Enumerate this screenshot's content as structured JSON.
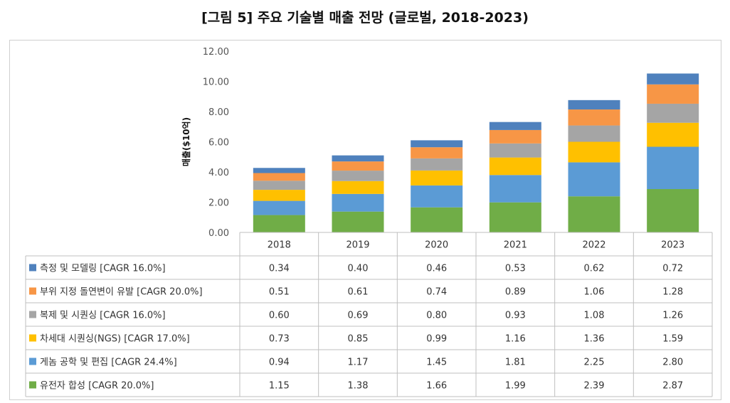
{
  "title": "[그림 5] 주요 기술별 매출 전망 (글로벌, 2018-2023)",
  "chart_data": {
    "type": "bar",
    "stacked": true,
    "title": "[그림 5] 주요 기술별 매출 전망 (글로벌, 2018-2023)",
    "xlabel": "",
    "ylabel": "매출($10억)",
    "ylim": [
      0,
      12
    ],
    "yticks": [
      "0.00",
      "2.00",
      "4.00",
      "6.00",
      "8.00",
      "10.00",
      "12.00"
    ],
    "grid": false,
    "legend": "data-table",
    "categories": [
      "2018",
      "2019",
      "2020",
      "2021",
      "2022",
      "2023"
    ],
    "series": [
      {
        "name": "측정 및 모델링 [CAGR 16.0%]",
        "color": "#4f81bd",
        "values": [
          0.34,
          0.4,
          0.46,
          0.53,
          0.62,
          0.72
        ],
        "labels": [
          "0.34",
          "0.40",
          "0.46",
          "0.53",
          "0.62",
          "0.72"
        ]
      },
      {
        "name": "부위 지정 돌연변이 유발 [CAGR 20.0%]",
        "color": "#f79646",
        "values": [
          0.51,
          0.61,
          0.74,
          0.89,
          1.06,
          1.28
        ],
        "labels": [
          "0.51",
          "0.61",
          "0.74",
          "0.89",
          "1.06",
          "1.28"
        ]
      },
      {
        "name": "복제 및 시퀀싱 [CAGR 16.0%]",
        "color": "#a5a5a5",
        "values": [
          0.6,
          0.69,
          0.8,
          0.93,
          1.08,
          1.26
        ],
        "labels": [
          "0.60",
          "0.69",
          "0.80",
          "0.93",
          "1.08",
          "1.26"
        ]
      },
      {
        "name": "차세대 시퀀싱(NGS) [CAGR 17.0%]",
        "color": "#ffc000",
        "values": [
          0.73,
          0.85,
          0.99,
          1.16,
          1.36,
          1.59
        ],
        "labels": [
          "0.73",
          "0.85",
          "0.99",
          "1.16",
          "1.36",
          "1.59"
        ]
      },
      {
        "name": "게놈 공학 및 편집 [CAGR 24.4%]",
        "color": "#5b9bd5",
        "values": [
          0.94,
          1.17,
          1.45,
          1.81,
          2.25,
          2.8
        ],
        "labels": [
          "0.94",
          "1.17",
          "1.45",
          "1.81",
          "2.25",
          "2.80"
        ]
      },
      {
        "name": "유전자 합성 [CAGR 20.0%]",
        "color": "#70ad47",
        "values": [
          1.15,
          1.38,
          1.66,
          1.99,
          2.39,
          2.87
        ],
        "labels": [
          "1.15",
          "1.38",
          "1.66",
          "1.99",
          "2.39",
          "2.87"
        ]
      }
    ]
  }
}
